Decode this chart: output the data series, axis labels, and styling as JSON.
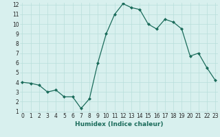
{
  "x": [
    0,
    1,
    2,
    3,
    4,
    5,
    6,
    7,
    8,
    9,
    10,
    11,
    12,
    13,
    14,
    15,
    16,
    17,
    18,
    19,
    20,
    21,
    22,
    23
  ],
  "y": [
    4.0,
    3.9,
    3.7,
    3.0,
    3.2,
    2.5,
    2.5,
    1.3,
    2.3,
    6.0,
    9.0,
    11.0,
    12.1,
    11.7,
    11.5,
    10.0,
    9.5,
    10.5,
    10.2,
    9.5,
    6.7,
    7.0,
    5.5,
    4.2
  ],
  "xlabel": "Humidex (Indice chaleur)",
  "ylim": [
    1,
    12
  ],
  "xlim": [
    -0.3,
    23.3
  ],
  "yticks": [
    1,
    2,
    3,
    4,
    5,
    6,
    7,
    8,
    9,
    10,
    11,
    12
  ],
  "xticks": [
    0,
    1,
    2,
    3,
    4,
    5,
    6,
    7,
    8,
    9,
    10,
    11,
    12,
    13,
    14,
    15,
    16,
    17,
    18,
    19,
    20,
    21,
    22,
    23
  ],
  "line_color": "#1a6b5a",
  "marker_color": "#1a6b5a",
  "bg_color": "#d8f0ee",
  "grid_color": "#b8deda",
  "tick_label_fontsize": 5.5,
  "xlabel_fontsize": 6.5
}
